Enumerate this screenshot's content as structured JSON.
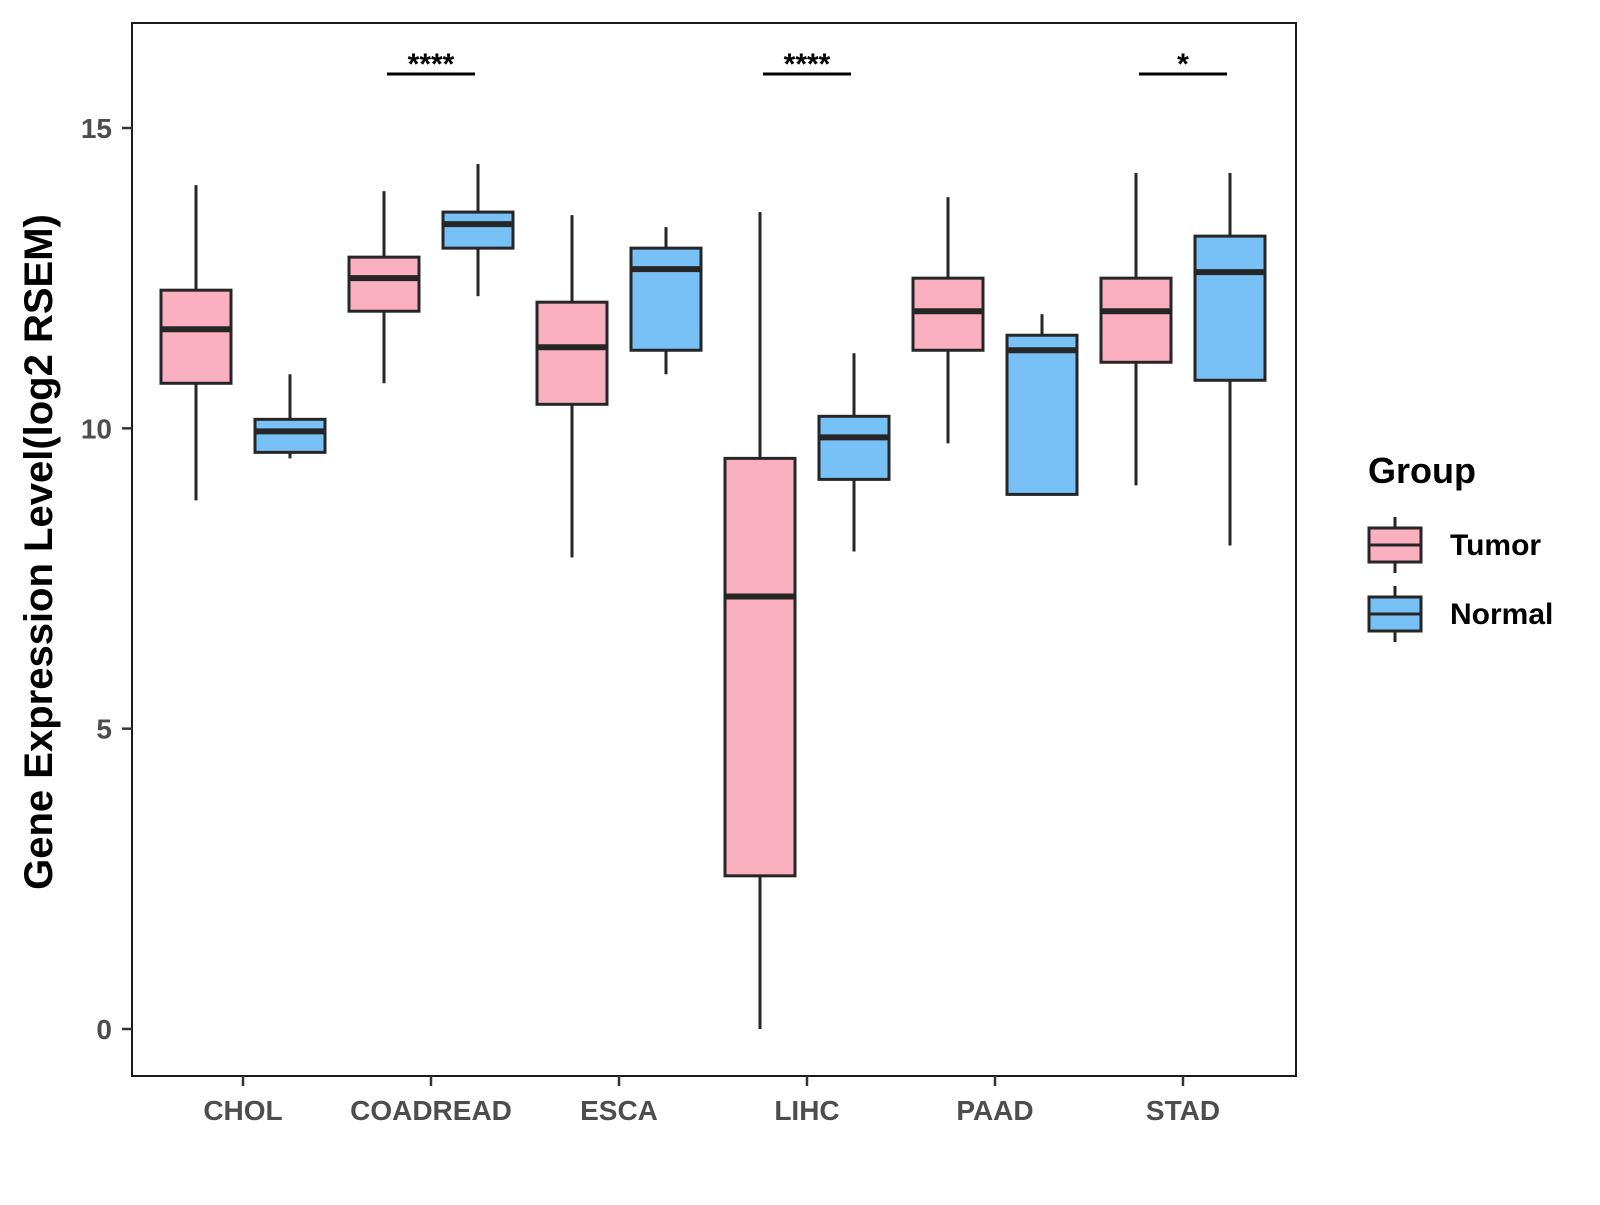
{
  "chart_data": {
    "type": "boxplot",
    "title": "",
    "xlabel": "",
    "ylabel": "Gene Expression Level(log2 RSEM)",
    "ylim": [
      -0.8,
      16.7
    ],
    "yticks": [
      0,
      5,
      10,
      15
    ],
    "grid": false,
    "categories": [
      "CHOL",
      "COADREAD",
      "ESCA",
      "LIHC",
      "PAAD",
      "STAD"
    ],
    "legend": {
      "title": "Group",
      "position": "right",
      "items": [
        {
          "name": "Tumor",
          "color": "#FBB0C1"
        },
        {
          "name": "Normal",
          "color": "#78C1F7"
        }
      ]
    },
    "series": [
      {
        "name": "Tumor",
        "color": "#FBB0C1",
        "boxes": [
          {
            "category": "CHOL",
            "whisker_low": 8.8,
            "q1": 10.75,
            "median": 11.65,
            "q3": 12.3,
            "whisker_high": 14.05
          },
          {
            "category": "COADREAD",
            "whisker_low": 10.75,
            "q1": 11.95,
            "median": 12.5,
            "q3": 12.85,
            "whisker_high": 13.95
          },
          {
            "category": "ESCA",
            "whisker_low": 7.85,
            "q1": 10.4,
            "median": 11.35,
            "q3": 12.1,
            "whisker_high": 13.55
          },
          {
            "category": "LIHC",
            "whisker_low": 0.0,
            "q1": 2.55,
            "median": 7.2,
            "q3": 9.5,
            "whisker_high": 13.6
          },
          {
            "category": "PAAD",
            "whisker_low": 9.75,
            "q1": 11.3,
            "median": 11.95,
            "q3": 12.5,
            "whisker_high": 13.85
          },
          {
            "category": "STAD",
            "whisker_low": 9.05,
            "q1": 11.1,
            "median": 11.95,
            "q3": 12.5,
            "whisker_high": 14.25
          }
        ]
      },
      {
        "name": "Normal",
        "color": "#78C1F7",
        "boxes": [
          {
            "category": "CHOL",
            "whisker_low": 9.5,
            "q1": 9.6,
            "median": 9.95,
            "q3": 10.15,
            "whisker_high": 10.9
          },
          {
            "category": "COADREAD",
            "whisker_low": 12.2,
            "q1": 13.0,
            "median": 13.4,
            "q3": 13.6,
            "whisker_high": 14.4
          },
          {
            "category": "ESCA",
            "whisker_low": 10.9,
            "q1": 11.3,
            "median": 12.65,
            "q3": 13.0,
            "whisker_high": 13.35
          },
          {
            "category": "LIHC",
            "whisker_low": 7.95,
            "q1": 9.15,
            "median": 9.85,
            "q3": 10.2,
            "whisker_high": 11.25
          },
          {
            "category": "PAAD",
            "whisker_low": 8.9,
            "q1": 8.9,
            "median": 11.3,
            "q3": 11.55,
            "whisker_high": 11.9
          },
          {
            "category": "STAD",
            "whisker_low": 8.05,
            "q1": 10.8,
            "median": 12.6,
            "q3": 13.2,
            "whisker_high": 14.25
          }
        ]
      }
    ],
    "annotations": [
      {
        "category": "COADREAD",
        "label": "****",
        "y": 15.9
      },
      {
        "category": "LIHC",
        "label": "****",
        "y": 15.9
      },
      {
        "category": "STAD",
        "label": "*",
        "y": 15.9
      }
    ]
  }
}
